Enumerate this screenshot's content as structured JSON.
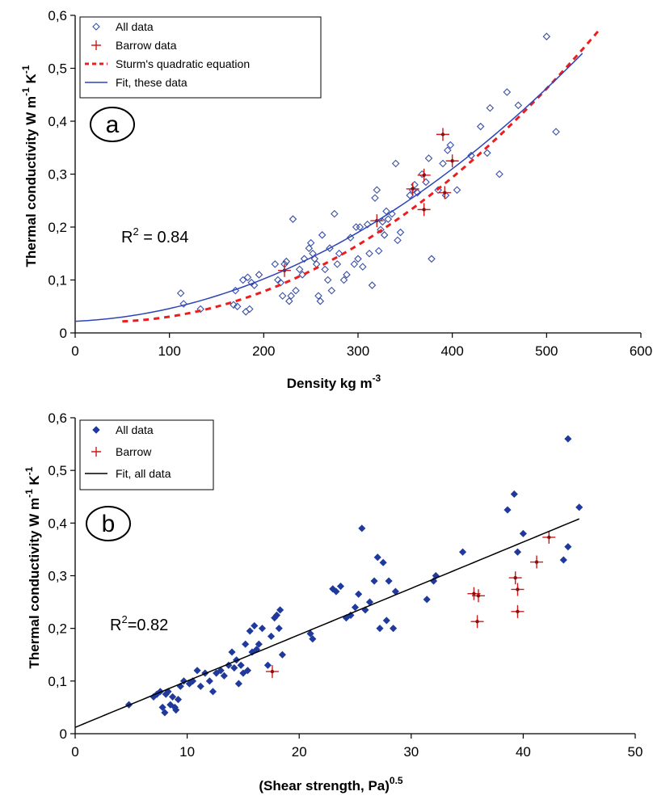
{
  "chart_data": [
    {
      "type": "scatter",
      "panel_label": "a",
      "xlabel": "Density kg m",
      "xlabel_sup": "-3",
      "ylabel_parts": [
        "Thermal conductivity W m",
        "-1",
        " K",
        "-1"
      ],
      "xlim": [
        0,
        600
      ],
      "ylim": [
        0,
        0.6
      ],
      "x_ticks": [
        0,
        100,
        200,
        300,
        400,
        500,
        600
      ],
      "y_ticks": [
        "0",
        "0,1",
        "0,2",
        "0,3",
        "0,4",
        "0,5",
        "0,6"
      ],
      "annotation": {
        "prefix": "R",
        "sup": "2",
        "suffix": " = 0.84"
      },
      "legend_position": "top-left",
      "series": [
        {
          "name": "All data",
          "marker": "diamond-open",
          "color": "#3a4fa8",
          "points": [
            [
              112,
              0.075
            ],
            [
              115,
              0.055
            ],
            [
              133,
              0.045
            ],
            [
              168,
              0.053
            ],
            [
              170,
              0.08
            ],
            [
              172,
              0.05
            ],
            [
              178,
              0.1
            ],
            [
              181,
              0.04
            ],
            [
              183,
              0.105
            ],
            [
              185,
              0.045
            ],
            [
              187,
              0.095
            ],
            [
              190,
              0.09
            ],
            [
              195,
              0.11
            ],
            [
              212,
              0.13
            ],
            [
              215,
              0.1
            ],
            [
              218,
              0.095
            ],
            [
              220,
              0.07
            ],
            [
              222,
              0.13
            ],
            [
              224,
              0.135
            ],
            [
              227,
              0.06
            ],
            [
              229,
              0.07
            ],
            [
              231,
              0.215
            ],
            [
              234,
              0.08
            ],
            [
              238,
              0.12
            ],
            [
              241,
              0.11
            ],
            [
              243,
              0.14
            ],
            [
              248,
              0.16
            ],
            [
              250,
              0.17
            ],
            [
              252,
              0.15
            ],
            [
              254,
              0.14
            ],
            [
              256,
              0.13
            ],
            [
              258,
              0.07
            ],
            [
              260,
              0.06
            ],
            [
              262,
              0.185
            ],
            [
              265,
              0.12
            ],
            [
              268,
              0.1
            ],
            [
              270,
              0.16
            ],
            [
              272,
              0.08
            ],
            [
              275,
              0.225
            ],
            [
              278,
              0.13
            ],
            [
              280,
              0.15
            ],
            [
              285,
              0.1
            ],
            [
              288,
              0.11
            ],
            [
              292,
              0.18
            ],
            [
              296,
              0.13
            ],
            [
              298,
              0.2
            ],
            [
              300,
              0.14
            ],
            [
              302,
              0.2
            ],
            [
              305,
              0.125
            ],
            [
              310,
              0.205
            ],
            [
              312,
              0.15
            ],
            [
              315,
              0.09
            ],
            [
              318,
              0.255
            ],
            [
              320,
              0.27
            ],
            [
              322,
              0.155
            ],
            [
              324,
              0.195
            ],
            [
              326,
              0.21
            ],
            [
              328,
              0.185
            ],
            [
              330,
              0.23
            ],
            [
              332,
              0.215
            ],
            [
              336,
              0.225
            ],
            [
              340,
              0.32
            ],
            [
              342,
              0.175
            ],
            [
              345,
              0.19
            ],
            [
              355,
              0.26
            ],
            [
              358,
              0.27
            ],
            [
              360,
              0.28
            ],
            [
              363,
              0.265
            ],
            [
              368,
              0.3
            ],
            [
              372,
              0.285
            ],
            [
              375,
              0.33
            ],
            [
              378,
              0.14
            ],
            [
              385,
              0.27
            ],
            [
              390,
              0.32
            ],
            [
              393,
              0.26
            ],
            [
              395,
              0.345
            ],
            [
              398,
              0.355
            ],
            [
              405,
              0.27
            ],
            [
              420,
              0.335
            ],
            [
              430,
              0.39
            ],
            [
              437,
              0.34
            ],
            [
              440,
              0.425
            ],
            [
              450,
              0.3
            ],
            [
              458,
              0.455
            ],
            [
              470,
              0.43
            ],
            [
              500,
              0.56
            ],
            [
              510,
              0.38
            ]
          ]
        },
        {
          "name": "Barrow data",
          "marker": "plus",
          "color": "#cc1a1a",
          "points": [
            [
              222,
              0.118
            ],
            [
              320,
              0.212
            ],
            [
              358,
              0.272
            ],
            [
              370,
              0.233
            ],
            [
              370,
              0.298
            ],
            [
              390,
              0.375
            ],
            [
              392,
              0.265
            ],
            [
              400,
              0.325
            ]
          ]
        },
        {
          "name": "Sturm's quadratic equation",
          "marker": "dashed-line",
          "color": "#ee1c1c",
          "fn": {
            "kind": "poly",
            "coef": [
              0.023,
              -0.000123,
              2e-06
            ],
            "x_range": [
              50,
              556
            ]
          }
        },
        {
          "name": "Fit, these data",
          "marker": "line",
          "color": "#2c44b8",
          "fn": {
            "kind": "poly",
            "coef": [
              0.022,
              8e-05,
              1.6e-06
            ],
            "x_range": [
              0,
              538
            ]
          }
        }
      ]
    },
    {
      "type": "scatter",
      "panel_label": "b",
      "xlabel": "(Shear strength, Pa)",
      "xlabel_sup": "0.5",
      "ylabel_parts": [
        "Thermal conductivity W m",
        "-1",
        " K",
        "-1"
      ],
      "xlim": [
        0,
        50
      ],
      "ylim": [
        0,
        0.6
      ],
      "x_ticks": [
        0,
        10,
        20,
        30,
        40,
        50
      ],
      "y_ticks": [
        "0",
        "0,1",
        "0,2",
        "0,3",
        "0,4",
        "0,5",
        "0,6"
      ],
      "annotation": {
        "prefix": "R",
        "sup": "2",
        "suffix": "=0.82"
      },
      "legend_position": "top-left",
      "series": [
        {
          "name": "All data",
          "marker": "diamond-filled",
          "color": "#1f3a9c",
          "points": [
            [
              4.8,
              0.055
            ],
            [
              7.0,
              0.07
            ],
            [
              7.3,
              0.075
            ],
            [
              7.6,
              0.08
            ],
            [
              7.8,
              0.05
            ],
            [
              8.0,
              0.04
            ],
            [
              8.1,
              0.075
            ],
            [
              8.3,
              0.08
            ],
            [
              8.5,
              0.055
            ],
            [
              8.7,
              0.07
            ],
            [
              8.9,
              0.05
            ],
            [
              9.0,
              0.045
            ],
            [
              9.2,
              0.065
            ],
            [
              9.4,
              0.09
            ],
            [
              9.7,
              0.1
            ],
            [
              10.2,
              0.095
            ],
            [
              10.5,
              0.1
            ],
            [
              10.9,
              0.12
            ],
            [
              11.2,
              0.09
            ],
            [
              11.6,
              0.115
            ],
            [
              12.0,
              0.1
            ],
            [
              12.3,
              0.08
            ],
            [
              12.6,
              0.115
            ],
            [
              13.0,
              0.12
            ],
            [
              13.3,
              0.11
            ],
            [
              13.7,
              0.13
            ],
            [
              14.0,
              0.155
            ],
            [
              14.2,
              0.125
            ],
            [
              14.4,
              0.14
            ],
            [
              14.6,
              0.095
            ],
            [
              14.8,
              0.13
            ],
            [
              15.0,
              0.115
            ],
            [
              15.2,
              0.17
            ],
            [
              15.4,
              0.12
            ],
            [
              15.6,
              0.195
            ],
            [
              15.8,
              0.155
            ],
            [
              16.0,
              0.205
            ],
            [
              16.2,
              0.16
            ],
            [
              16.4,
              0.17
            ],
            [
              16.7,
              0.2
            ],
            [
              17.2,
              0.13
            ],
            [
              17.5,
              0.185
            ],
            [
              17.8,
              0.22
            ],
            [
              18.0,
              0.225
            ],
            [
              18.2,
              0.2
            ],
            [
              18.3,
              0.235
            ],
            [
              18.5,
              0.15
            ],
            [
              21.0,
              0.19
            ],
            [
              21.2,
              0.18
            ],
            [
              23.0,
              0.275
            ],
            [
              23.3,
              0.27
            ],
            [
              23.7,
              0.28
            ],
            [
              24.2,
              0.22
            ],
            [
              24.6,
              0.225
            ],
            [
              25.0,
              0.24
            ],
            [
              25.3,
              0.265
            ],
            [
              25.6,
              0.39
            ],
            [
              25.9,
              0.235
            ],
            [
              26.3,
              0.25
            ],
            [
              26.7,
              0.29
            ],
            [
              27.0,
              0.335
            ],
            [
              27.2,
              0.2
            ],
            [
              27.5,
              0.325
            ],
            [
              27.8,
              0.215
            ],
            [
              28.0,
              0.29
            ],
            [
              28.4,
              0.2
            ],
            [
              28.6,
              0.27
            ],
            [
              31.4,
              0.255
            ],
            [
              32.0,
              0.29
            ],
            [
              32.2,
              0.3
            ],
            [
              34.6,
              0.345
            ],
            [
              38.6,
              0.425
            ],
            [
              39.2,
              0.455
            ],
            [
              39.5,
              0.345
            ],
            [
              40.0,
              0.38
            ],
            [
              43.6,
              0.33
            ],
            [
              44.0,
              0.355
            ],
            [
              44.0,
              0.56
            ],
            [
              45.0,
              0.43
            ]
          ]
        },
        {
          "name": "Barrow",
          "marker": "plus",
          "color": "#cc1a1a",
          "points": [
            [
              17.6,
              0.118
            ],
            [
              35.6,
              0.266
            ],
            [
              35.9,
              0.213
            ],
            [
              36.0,
              0.262
            ],
            [
              39.3,
              0.296
            ],
            [
              39.5,
              0.274
            ],
            [
              39.5,
              0.232
            ],
            [
              41.2,
              0.326
            ],
            [
              42.3,
              0.373
            ]
          ]
        },
        {
          "name": "Fit, all data",
          "marker": "line",
          "color": "#000000",
          "fn": {
            "kind": "poly",
            "coef": [
              0.012,
              0.0088
            ],
            "x_range": [
              0,
              45
            ]
          }
        }
      ]
    }
  ]
}
